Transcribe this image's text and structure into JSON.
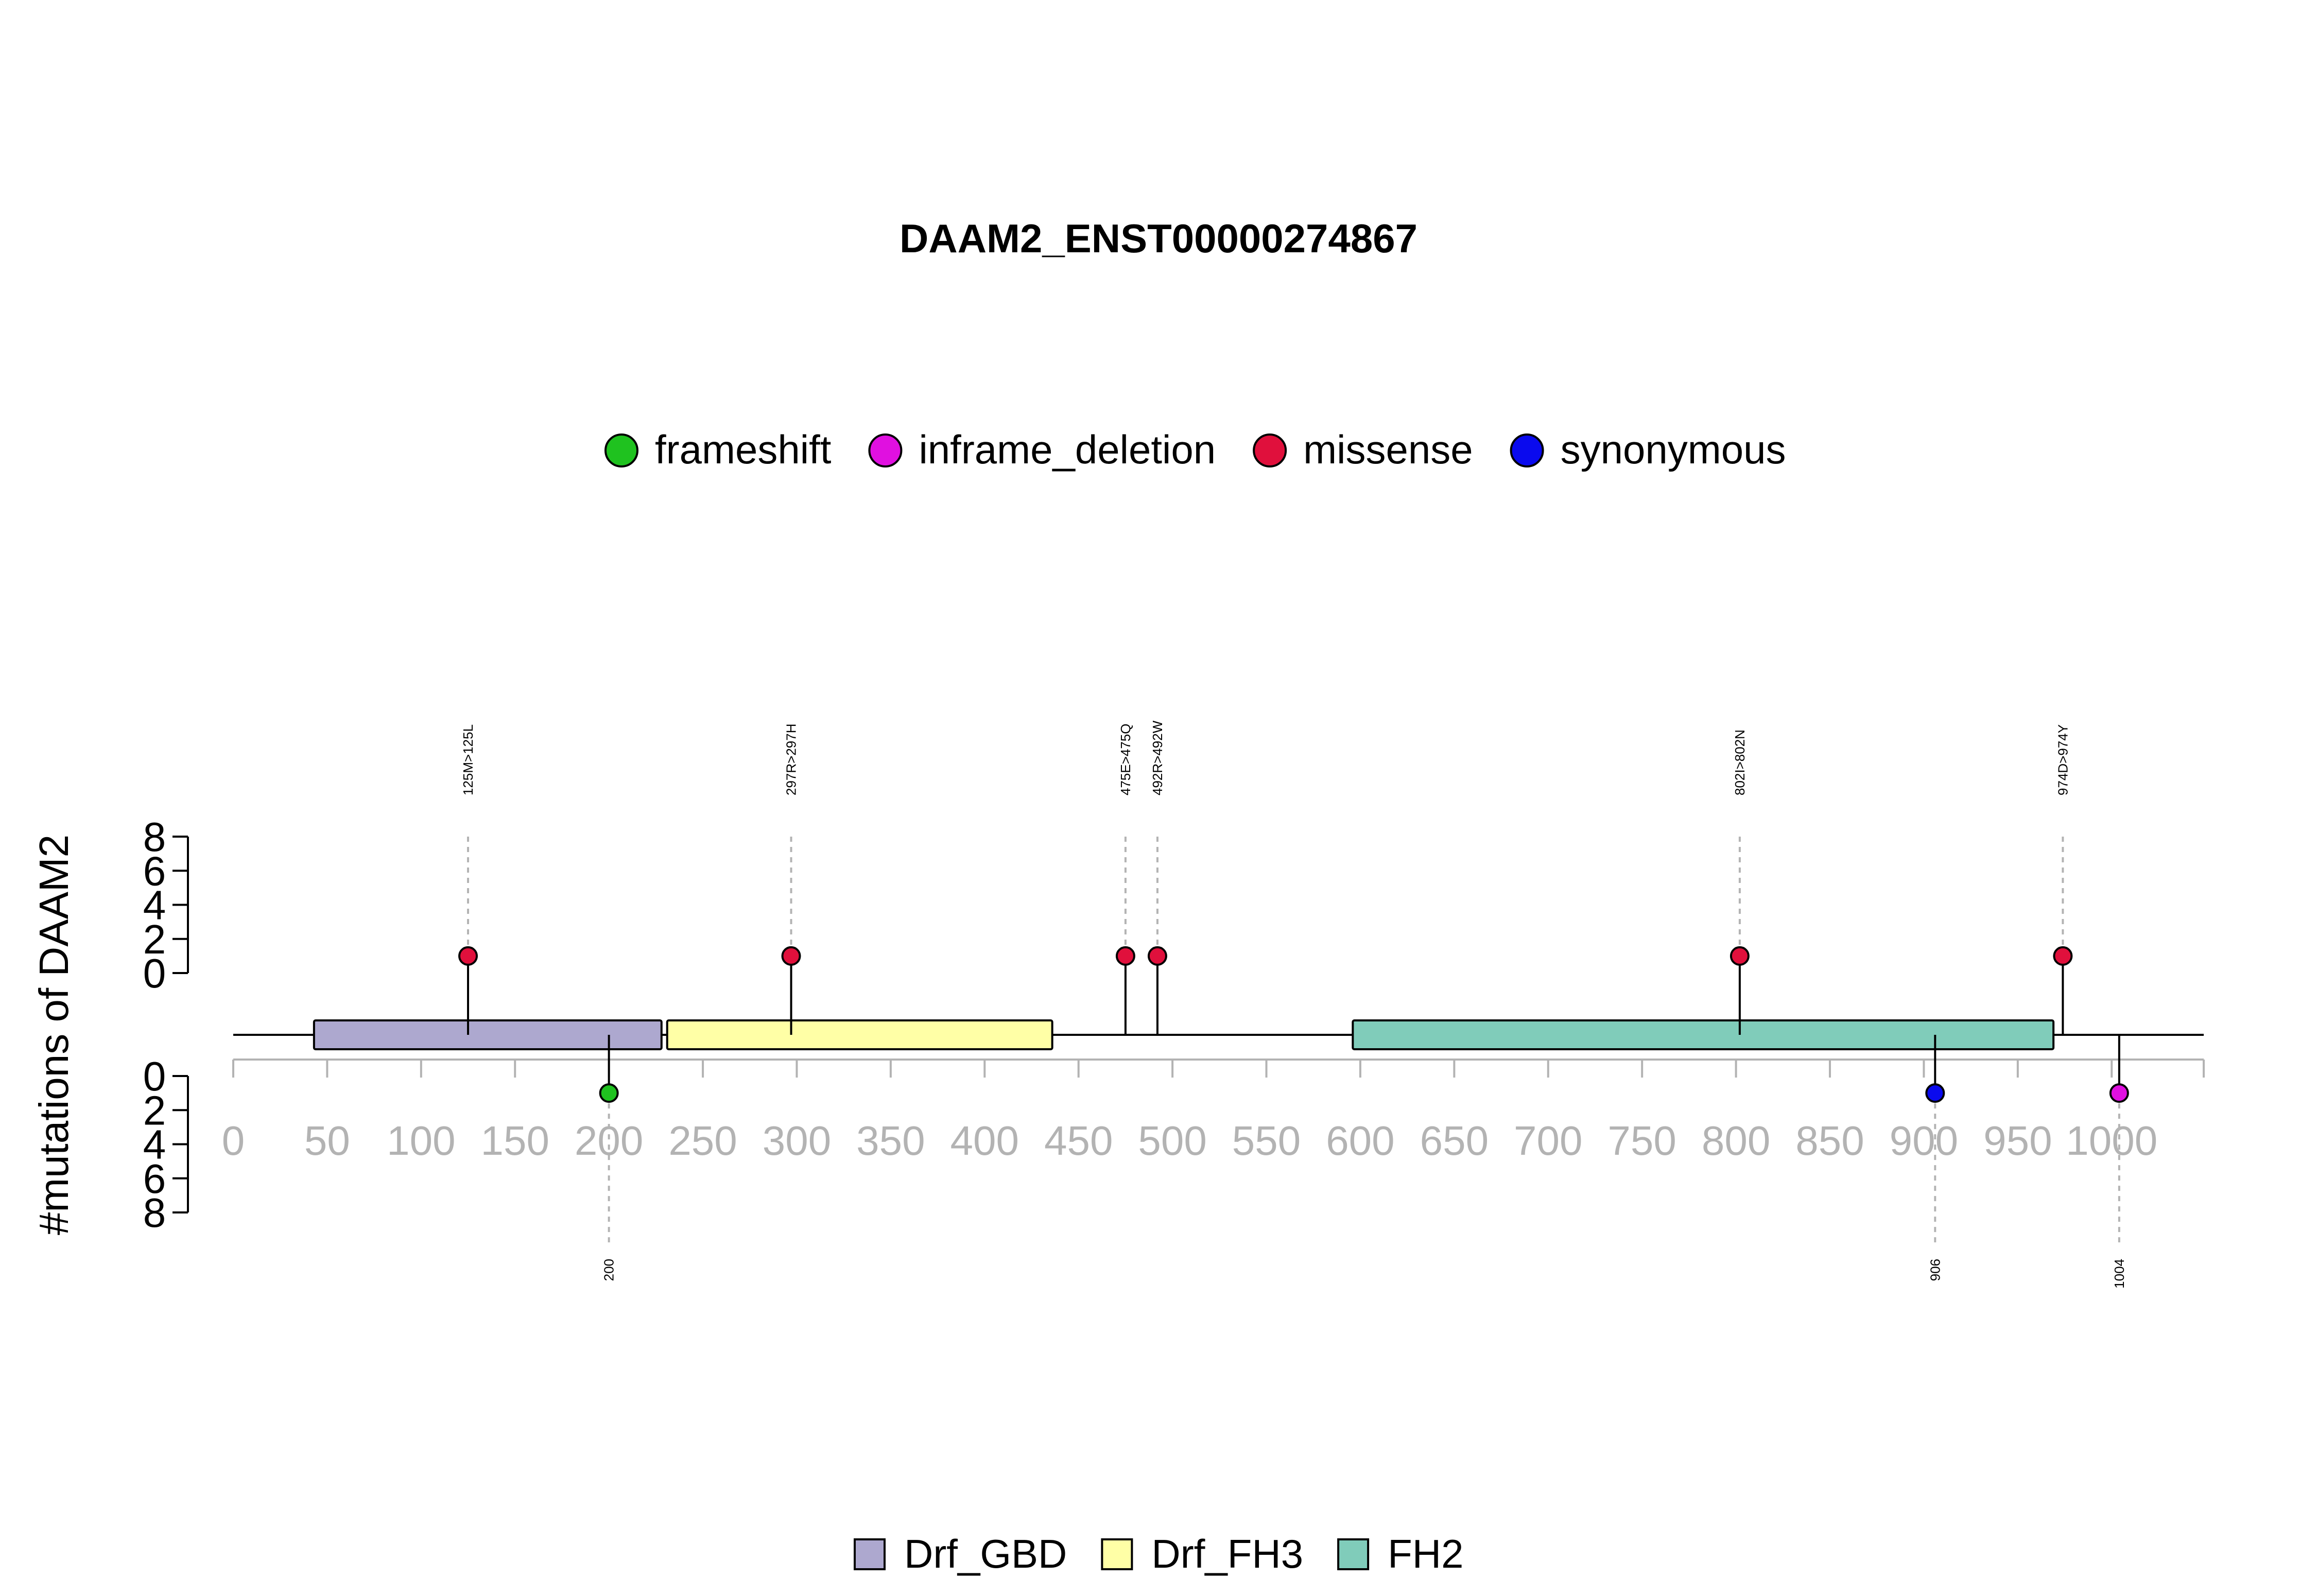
{
  "chart_data": {
    "type": "lollipop",
    "title": "DAAM2_ENST00000274867",
    "ylabel": "#mutations of DAAM2",
    "xlim": [
      0,
      1049
    ],
    "x_ticks": [
      0,
      50,
      100,
      150,
      200,
      250,
      300,
      350,
      400,
      450,
      500,
      550,
      600,
      650,
      700,
      750,
      800,
      850,
      900,
      950,
      1000
    ],
    "y_ticks_top": [
      "0",
      "2",
      "4",
      "6",
      "8"
    ],
    "y_ticks_bottom": [
      "0",
      "2",
      "4",
      "6",
      "8"
    ],
    "ylim": [
      0,
      8
    ],
    "legend_mutation": {
      "placement": "top-center",
      "items": [
        {
          "label": "frameshift",
          "color": "#1fc21f"
        },
        {
          "label": "inframe_deletion",
          "color": "#e010e0"
        },
        {
          "label": "missense",
          "color": "#e0103c"
        },
        {
          "label": "synonymous",
          "color": "#0a0aee"
        }
      ]
    },
    "legend_domain": {
      "placement": "bottom-center",
      "items": [
        {
          "label": "Drf_GBD",
          "color": "#ada8cf"
        },
        {
          "label": "Drf_FH3",
          "color": "#ffffa6"
        },
        {
          "label": "FH2",
          "color": "#80ccba"
        }
      ]
    },
    "domains": [
      {
        "name": "Drf_GBD",
        "start": 43,
        "end": 228,
        "color": "#ada8cf"
      },
      {
        "name": "Drf_FH3",
        "start": 231,
        "end": 436,
        "color": "#ffffa6"
      },
      {
        "name": "FH2",
        "start": 596,
        "end": 969,
        "color": "#80ccba"
      }
    ],
    "mutations_top": [
      {
        "position": 125,
        "count": 1,
        "type": "missense",
        "label": "125M>125L",
        "color": "#e0103c"
      },
      {
        "position": 297,
        "count": 1,
        "type": "missense",
        "label": "297R>297H",
        "color": "#e0103c"
      },
      {
        "position": 475,
        "count": 1,
        "type": "missense",
        "label": "475E>475Q",
        "color": "#e0103c"
      },
      {
        "position": 492,
        "count": 1,
        "type": "missense",
        "label": "492R>492W",
        "color": "#e0103c"
      },
      {
        "position": 802,
        "count": 1,
        "type": "missense",
        "label": "802I>802N",
        "color": "#e0103c"
      },
      {
        "position": 974,
        "count": 1,
        "type": "missense",
        "label": "974D>974Y",
        "color": "#e0103c"
      }
    ],
    "mutations_bottom": [
      {
        "position": 200,
        "count": 1,
        "type": "frameshift",
        "label": "200",
        "color": "#1fc21f"
      },
      {
        "position": 906,
        "count": 1,
        "type": "synonymous",
        "label": "906",
        "color": "#0a0aee"
      },
      {
        "position": 1004,
        "count": 1,
        "type": "inframe_deletion",
        "label": "1004",
        "color": "#e010e0"
      }
    ]
  }
}
